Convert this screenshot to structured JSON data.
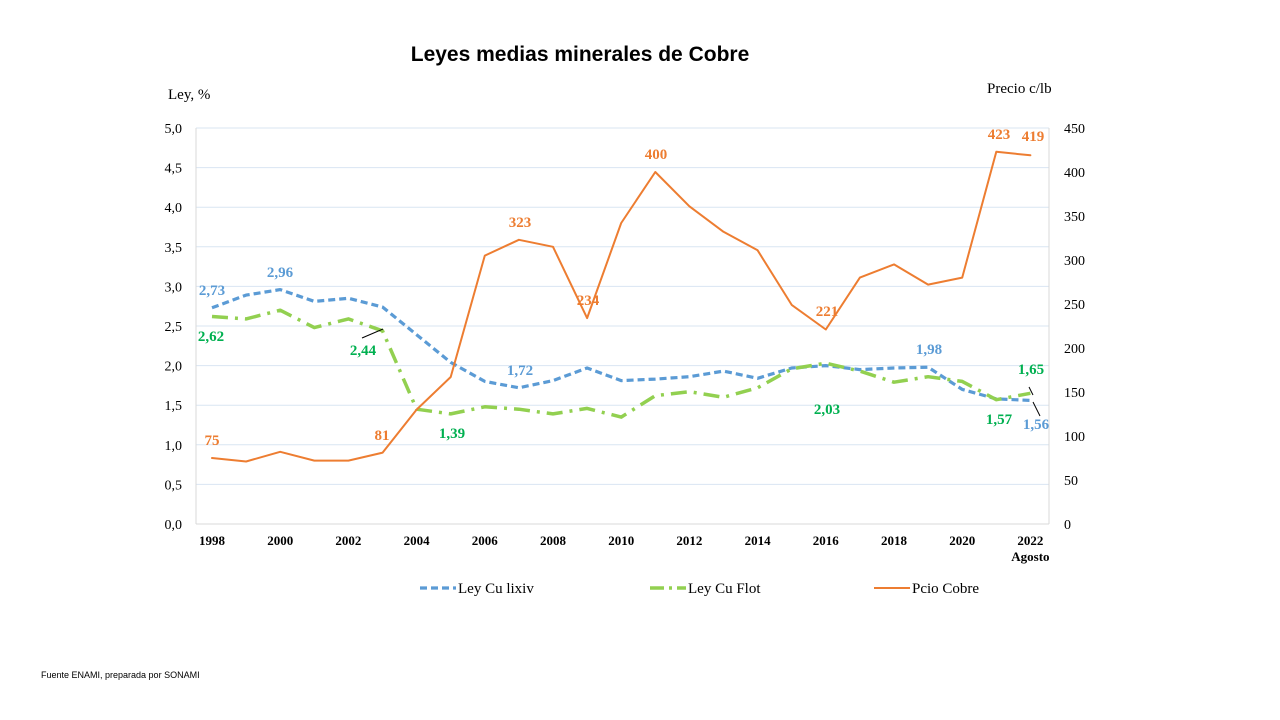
{
  "chart_data": {
    "type": "line",
    "title": "Leyes medias minerales de Cobre",
    "ylabel": "Ley, %",
    "y2label": "Precio  c/lb",
    "ylim": [
      0,
      5
    ],
    "y2lim": [
      0,
      450
    ],
    "yticks": [
      "0,0",
      "0,5",
      "1,0",
      "1,5",
      "2,0",
      "2,5",
      "3,0",
      "3,5",
      "4,0",
      "4,5",
      "5,0"
    ],
    "y2ticks": [
      "0",
      "50",
      "100",
      "150",
      "200",
      "250",
      "300",
      "350",
      "400",
      "450"
    ],
    "x": [
      1998,
      1999,
      2000,
      2001,
      2002,
      2003,
      2004,
      2005,
      2006,
      2007,
      2008,
      2009,
      2010,
      2011,
      2012,
      2013,
      2014,
      2015,
      2016,
      2017,
      2018,
      2019,
      2020,
      2021,
      2022
    ],
    "xtick_labels": [
      "1998",
      "2000",
      "2002",
      "2004",
      "2006",
      "2008",
      "2010",
      "2012",
      "2014",
      "2016",
      "2018",
      "2020",
      "2022"
    ],
    "xtick_sublabel": "Agosto",
    "grid": "horizontal",
    "legend_position": "bottom",
    "series": [
      {
        "name": "Ley Cu lixiv",
        "axis": "left",
        "color": "#5b9bd5",
        "values": [
          2.73,
          2.89,
          2.96,
          2.81,
          2.85,
          2.74,
          2.39,
          2.04,
          1.8,
          1.72,
          1.81,
          1.97,
          1.81,
          1.83,
          1.86,
          1.93,
          1.84,
          1.97,
          2.0,
          1.95,
          1.97,
          1.98,
          1.7,
          1.58,
          1.56
        ]
      },
      {
        "name": "Ley Cu Flot",
        "axis": "left",
        "color": "#92d050",
        "values": [
          2.62,
          2.59,
          2.7,
          2.48,
          2.59,
          2.44,
          1.45,
          1.39,
          1.48,
          1.45,
          1.39,
          1.46,
          1.35,
          1.62,
          1.67,
          1.6,
          1.72,
          1.96,
          2.03,
          1.93,
          1.79,
          1.86,
          1.8,
          1.57,
          1.65
        ]
      },
      {
        "name": "Pcio Cobre",
        "axis": "right",
        "color": "#ed7d31",
        "values": [
          75,
          71,
          82,
          72,
          72,
          81,
          130,
          167,
          305,
          323,
          315,
          234,
          342,
          400,
          361,
          332,
          311,
          249,
          221,
          280,
          295,
          272,
          280,
          423,
          419
        ]
      }
    ],
    "data_labels": [
      {
        "text": "2,73",
        "color": "#5b9bd5"
      },
      {
        "text": "2,96",
        "color": "#5b9bd5"
      },
      {
        "text": "1,72",
        "color": "#5b9bd5"
      },
      {
        "text": "1,98",
        "color": "#5b9bd5"
      },
      {
        "text": "1,56",
        "color": "#5b9bd5"
      },
      {
        "text": "2,62",
        "color": "#00b050"
      },
      {
        "text": "2,44",
        "color": "#00b050"
      },
      {
        "text": "1,39",
        "color": "#00b050"
      },
      {
        "text": "2,03",
        "color": "#00b050"
      },
      {
        "text": "1,57",
        "color": "#00b050"
      },
      {
        "text": "1,65",
        "color": "#00b050"
      },
      {
        "text": "75",
        "color": "#ed7d31"
      },
      {
        "text": "81",
        "color": "#ed7d31"
      },
      {
        "text": "323",
        "color": "#ed7d31"
      },
      {
        "text": "234",
        "color": "#ed7d31"
      },
      {
        "text": "400",
        "color": "#ed7d31"
      },
      {
        "text": "221",
        "color": "#ed7d31"
      },
      {
        "text": "423",
        "color": "#ed7d31"
      },
      {
        "text": "419",
        "color": "#ed7d31"
      }
    ]
  },
  "footer": {
    "source": "Fuente ENAMI, preparada por SONAMI"
  }
}
